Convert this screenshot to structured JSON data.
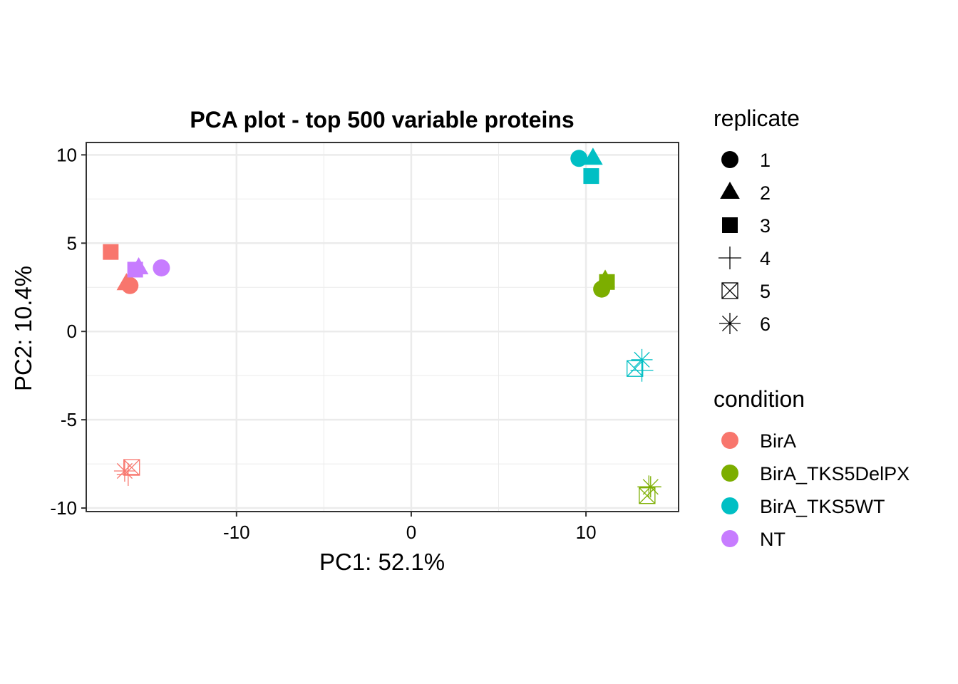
{
  "chart_data": {
    "type": "scatter",
    "title": "PCA plot - top 500 variable proteins",
    "xlabel": "PC1: 52.1%",
    "ylabel": "PC2: 10.4%",
    "xlim": [
      -18.6,
      15.3
    ],
    "ylim": [
      -10.2,
      10.7
    ],
    "xticks": [
      -10,
      0,
      10
    ],
    "xtick_labels": [
      "-10",
      "0",
      "10"
    ],
    "yticks": [
      -10,
      -5,
      0,
      5,
      10
    ],
    "ytick_labels": [
      "-10",
      "-5",
      "0",
      "5",
      "10"
    ],
    "grid": true,
    "legend_position": "right",
    "legends": {
      "replicate": {
        "title": "replicate",
        "items": [
          {
            "label": "1",
            "shape": "circle"
          },
          {
            "label": "2",
            "shape": "triangle"
          },
          {
            "label": "3",
            "shape": "square"
          },
          {
            "label": "4",
            "shape": "plus"
          },
          {
            "label": "5",
            "shape": "boxed-x"
          },
          {
            "label": "6",
            "shape": "asterisk"
          }
        ]
      },
      "condition": {
        "title": "condition",
        "items": [
          {
            "label": "BirA",
            "color": "#F8766D"
          },
          {
            "label": "BirA_TKS5DelPX",
            "color": "#7CAE00"
          },
          {
            "label": "BirA_TKS5WT",
            "color": "#00BFC4"
          },
          {
            "label": "NT",
            "color": "#C77CFF"
          }
        ]
      }
    },
    "points": [
      {
        "condition": "BirA",
        "replicate": "1",
        "x": -16.1,
        "y": 2.6
      },
      {
        "condition": "BirA",
        "replicate": "2",
        "x": -16.3,
        "y": 2.7
      },
      {
        "condition": "BirA",
        "replicate": "3",
        "x": -17.2,
        "y": 4.5
      },
      {
        "condition": "BirA",
        "replicate": "4",
        "x": -16.2,
        "y": -8.1
      },
      {
        "condition": "BirA",
        "replicate": "5",
        "x": -16.0,
        "y": -7.7
      },
      {
        "condition": "BirA",
        "replicate": "6",
        "x": -16.4,
        "y": -7.9
      },
      {
        "condition": "BirA_TKS5DelPX",
        "replicate": "1",
        "x": 10.9,
        "y": 2.4
      },
      {
        "condition": "BirA_TKS5DelPX",
        "replicate": "2",
        "x": 11.1,
        "y": 2.9
      },
      {
        "condition": "BirA_TKS5DelPX",
        "replicate": "3",
        "x": 11.2,
        "y": 2.8
      },
      {
        "condition": "BirA_TKS5DelPX",
        "replicate": "4",
        "x": 13.6,
        "y": -8.8
      },
      {
        "condition": "BirA_TKS5DelPX",
        "replicate": "5",
        "x": 13.5,
        "y": -9.3
      },
      {
        "condition": "BirA_TKS5DelPX",
        "replicate": "6",
        "x": 13.7,
        "y": -8.8
      },
      {
        "condition": "BirA_TKS5WT",
        "replicate": "1",
        "x": 9.6,
        "y": 9.8
      },
      {
        "condition": "BirA_TKS5WT",
        "replicate": "2",
        "x": 10.4,
        "y": 9.8
      },
      {
        "condition": "BirA_TKS5WT",
        "replicate": "3",
        "x": 10.3,
        "y": 8.8
      },
      {
        "condition": "BirA_TKS5WT",
        "replicate": "4",
        "x": 13.2,
        "y": -2.2
      },
      {
        "condition": "BirA_TKS5WT",
        "replicate": "5",
        "x": 12.8,
        "y": -2.1
      },
      {
        "condition": "BirA_TKS5WT",
        "replicate": "6",
        "x": 13.2,
        "y": -1.6
      },
      {
        "condition": "NT",
        "replicate": "1",
        "x": -14.3,
        "y": 3.6
      },
      {
        "condition": "NT",
        "replicate": "2",
        "x": -15.6,
        "y": 3.6
      },
      {
        "condition": "NT",
        "replicate": "3",
        "x": -15.8,
        "y": 3.5
      }
    ]
  }
}
